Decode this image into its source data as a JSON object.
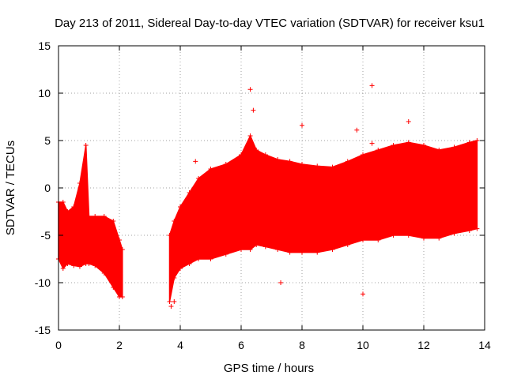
{
  "chart_data": {
    "type": "scatter",
    "title": "Day 213 of 2011, Sidereal Day-to-day VTEC variation (SDTVAR) for receiver ksu1",
    "xlabel": "GPS time / hours",
    "ylabel": "SDTVAR / TECUs",
    "xlim": [
      0,
      14
    ],
    "ylim": [
      -15,
      15
    ],
    "xticks": [
      0,
      2,
      4,
      6,
      8,
      10,
      12,
      14
    ],
    "yticks": [
      -15,
      -10,
      -5,
      0,
      5,
      10,
      15
    ],
    "grid": true,
    "color": "#ff0000",
    "marker": "plus",
    "envelope": {
      "name": "SDTVAR scatter envelope (dense range)",
      "x": [
        0.0,
        0.15,
        0.3,
        0.5,
        0.7,
        0.9,
        1.0,
        1.2,
        1.5,
        1.8,
        2.0,
        2.1,
        3.65,
        3.8,
        4.0,
        4.3,
        4.6,
        5.0,
        5.5,
        6.0,
        6.3,
        6.5,
        6.8,
        7.2,
        7.6,
        8.0,
        8.5,
        9.0,
        9.5,
        10.0,
        10.5,
        11.0,
        11.5,
        12.0,
        12.5,
        13.0,
        13.5,
        13.75
      ],
      "upper": [
        -1.5,
        -1.5,
        -2.5,
        -2.0,
        0.5,
        4.5,
        -3.0,
        -3.0,
        -3.0,
        -3.5,
        -5.5,
        -6.5,
        -5.0,
        -3.5,
        -2.0,
        -0.5,
        1.0,
        2.0,
        2.5,
        3.5,
        5.5,
        4.0,
        3.5,
        3.0,
        2.8,
        2.5,
        2.3,
        2.2,
        2.8,
        3.5,
        4.0,
        4.5,
        4.8,
        4.5,
        4.0,
        4.3,
        4.8,
        5.0
      ],
      "lower": [
        -7.5,
        -8.5,
        -8.0,
        -8.2,
        -8.3,
        -8.0,
        -8.0,
        -8.2,
        -9.0,
        -10.5,
        -11.5,
        -11.5,
        -12.0,
        -9.5,
        -8.5,
        -8.0,
        -7.5,
        -7.5,
        -7.0,
        -6.5,
        -6.5,
        -6.0,
        -6.2,
        -6.5,
        -6.8,
        -6.8,
        -6.8,
        -6.5,
        -6.0,
        -5.5,
        -5.5,
        -5.0,
        -5.0,
        -5.3,
        -5.3,
        -4.8,
        -4.5,
        -4.3
      ]
    },
    "outliers": {
      "x": [
        6.3,
        10.3,
        9.8,
        6.4,
        8.0,
        4.5,
        7.3,
        10.0,
        11.5,
        10.3,
        3.7,
        3.8
      ],
      "y": [
        10.4,
        10.8,
        6.1,
        8.2,
        6.6,
        2.8,
        -10.0,
        -11.2,
        7.0,
        4.7,
        -12.5,
        -12.0
      ]
    }
  }
}
